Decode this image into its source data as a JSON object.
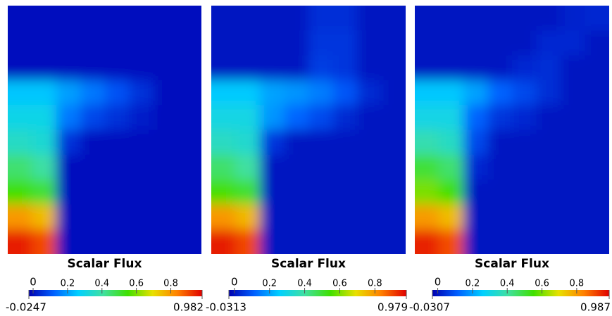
{
  "chart_data": [
    {
      "type": "heatmap",
      "title": "Scalar Flux",
      "clim": [
        -0.0247,
        0.982
      ],
      "cticks": [
        0,
        0.2,
        0.4,
        0.6,
        0.8
      ],
      "colormap": [
        "#0000b0",
        "#0060ff",
        "#00d0ff",
        "#40e0a0",
        "#40e000",
        "#e8e000",
        "#ff8000",
        "#e00000"
      ],
      "z": [
        [
          0,
          0,
          0,
          0,
          0,
          0,
          0,
          0
        ],
        [
          0,
          0,
          0,
          0,
          0,
          0,
          0,
          0
        ],
        [
          0,
          0,
          0,
          0,
          0,
          0,
          0,
          0
        ],
        [
          0.25,
          0.25,
          0.2,
          0.15,
          0.1,
          0.05,
          0,
          0
        ],
        [
          0.3,
          0.3,
          0.15,
          0.08,
          0.05,
          0.02,
          0,
          0
        ],
        [
          0.35,
          0.33,
          0.05,
          0,
          0,
          0,
          0,
          0
        ],
        [
          0.45,
          0.4,
          0,
          0,
          0,
          0,
          0,
          0
        ],
        [
          0.55,
          0.5,
          0,
          0,
          0,
          0,
          0,
          0
        ],
        [
          0.8,
          0.75,
          0,
          0,
          0,
          0,
          0,
          0
        ],
        [
          0.95,
          0.9,
          0,
          0,
          0,
          0,
          0,
          0
        ]
      ]
    },
    {
      "type": "heatmap",
      "title": "Scalar Flux",
      "clim": [
        -0.0313,
        0.979
      ],
      "cticks": [
        0,
        0.2,
        0.4,
        0.6,
        0.8
      ],
      "colormap": [
        "#0000b0",
        "#0060ff",
        "#00d0ff",
        "#40e0a0",
        "#40e000",
        "#e8e000",
        "#ff8000",
        "#e00000"
      ],
      "z": [
        [
          0,
          0,
          0,
          0,
          0.04,
          0.04,
          0,
          0
        ],
        [
          0,
          0,
          0,
          0,
          0.05,
          0.05,
          0,
          0
        ],
        [
          0,
          0,
          0,
          0,
          0.06,
          0.05,
          0,
          0
        ],
        [
          0.25,
          0.25,
          0.2,
          0.18,
          0.15,
          0.1,
          0.03,
          0
        ],
        [
          0.3,
          0.3,
          0.18,
          0.12,
          0.08,
          0.03,
          0,
          0
        ],
        [
          0.35,
          0.33,
          0.05,
          0,
          0,
          0,
          0,
          0
        ],
        [
          0.45,
          0.4,
          0,
          0,
          0,
          0,
          0,
          0
        ],
        [
          0.55,
          0.5,
          0,
          0,
          0,
          0,
          0,
          0
        ],
        [
          0.8,
          0.75,
          0,
          0,
          0,
          0,
          0,
          0
        ],
        [
          0.95,
          0.9,
          0,
          0,
          0,
          0,
          0,
          0
        ]
      ]
    },
    {
      "type": "heatmap",
      "title": "Scalar Flux",
      "clim": [
        -0.0307,
        0.987
      ],
      "cticks": [
        0,
        0.2,
        0.4,
        0.6,
        0.8
      ],
      "colormap": [
        "#0000b0",
        "#0060ff",
        "#00d0ff",
        "#40e0a0",
        "#40e000",
        "#e8e000",
        "#ff8000",
        "#e00000"
      ],
      "z": [
        [
          0,
          0,
          0,
          0,
          0,
          0,
          0.02,
          0.03
        ],
        [
          0,
          0,
          0,
          0,
          0,
          0.03,
          0.03,
          0
        ],
        [
          0,
          0,
          0,
          0,
          0.03,
          0.04,
          0,
          0
        ],
        [
          0.25,
          0.25,
          0.2,
          0.12,
          0.08,
          0.04,
          0,
          0
        ],
        [
          0.3,
          0.3,
          0.12,
          0.05,
          0.03,
          0,
          0,
          0
        ],
        [
          0.38,
          0.35,
          0.08,
          0,
          0,
          0,
          0,
          0
        ],
        [
          0.5,
          0.45,
          0.03,
          0,
          0,
          0,
          0,
          0
        ],
        [
          0.6,
          0.55,
          0,
          0,
          0,
          0,
          0,
          0
        ],
        [
          0.8,
          0.75,
          0,
          0,
          0,
          0,
          0,
          0
        ],
        [
          0.95,
          0.9,
          0,
          0,
          0,
          0,
          0,
          0
        ]
      ]
    }
  ]
}
